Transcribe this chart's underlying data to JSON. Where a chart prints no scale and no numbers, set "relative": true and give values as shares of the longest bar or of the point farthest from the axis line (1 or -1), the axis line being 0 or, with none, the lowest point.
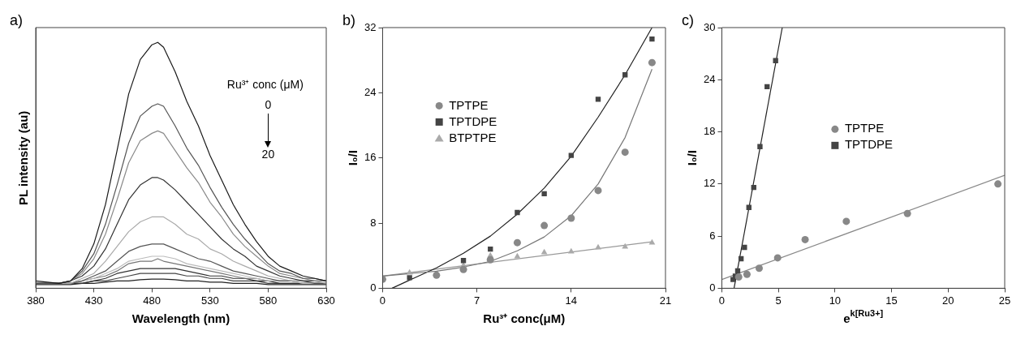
{
  "chart_data": [
    {
      "type": "line",
      "title": "a)",
      "xlabel": "Wavelength (nm)",
      "ylabel": "PL intensity (au)",
      "relative": true,
      "xlim": [
        380,
        630
      ],
      "xticks": [
        380,
        430,
        480,
        530,
        580,
        630
      ],
      "annotations": [
        "Ru³⁺ conc (μM)",
        "0",
        "20"
      ],
      "x": [
        380,
        400,
        410,
        420,
        430,
        440,
        450,
        460,
        470,
        480,
        485,
        490,
        500,
        510,
        520,
        530,
        540,
        550,
        560,
        570,
        580,
        590,
        600,
        610,
        620,
        630
      ],
      "series": [
        {
          "color": "#1a1a1a",
          "values": [
            0.03,
            0.02,
            0.03,
            0.08,
            0.18,
            0.34,
            0.56,
            0.79,
            0.93,
            0.99,
            1,
            0.98,
            0.88,
            0.76,
            0.66,
            0.54,
            0.44,
            0.34,
            0.26,
            0.19,
            0.13,
            0.09,
            0.07,
            0.05,
            0.04,
            0.03
          ]
        },
        {
          "color": "#555555",
          "values": [
            0.02,
            0.02,
            0.03,
            0.07,
            0.14,
            0.26,
            0.42,
            0.59,
            0.7,
            0.74,
            0.75,
            0.74,
            0.66,
            0.57,
            0.5,
            0.41,
            0.33,
            0.26,
            0.2,
            0.15,
            0.1,
            0.07,
            0.06,
            0.04,
            0.04,
            0.03
          ]
        },
        {
          "color": "#8a8a8a",
          "values": [
            0.02,
            0.02,
            0.03,
            0.06,
            0.12,
            0.22,
            0.36,
            0.51,
            0.6,
            0.63,
            0.64,
            0.63,
            0.56,
            0.49,
            0.43,
            0.35,
            0.29,
            0.22,
            0.17,
            0.13,
            0.09,
            0.06,
            0.05,
            0.04,
            0.03,
            0.03
          ]
        },
        {
          "color": "#333333",
          "values": [
            0.02,
            0.02,
            0.03,
            0.05,
            0.09,
            0.16,
            0.26,
            0.36,
            0.42,
            0.45,
            0.45,
            0.44,
            0.4,
            0.35,
            0.3,
            0.25,
            0.2,
            0.16,
            0.13,
            0.09,
            0.07,
            0.05,
            0.04,
            0.03,
            0.03,
            0.03
          ]
        },
        {
          "color": "#aaaaaa",
          "values": [
            0.02,
            0.02,
            0.02,
            0.04,
            0.06,
            0.11,
            0.17,
            0.23,
            0.27,
            0.29,
            0.29,
            0.29,
            0.26,
            0.22,
            0.2,
            0.16,
            0.14,
            0.11,
            0.09,
            0.07,
            0.05,
            0.04,
            0.03,
            0.03,
            0.03,
            0.02
          ]
        },
        {
          "color": "#555555",
          "values": [
            0.02,
            0.02,
            0.02,
            0.03,
            0.05,
            0.07,
            0.11,
            0.15,
            0.17,
            0.18,
            0.18,
            0.18,
            0.16,
            0.14,
            0.12,
            0.11,
            0.09,
            0.07,
            0.06,
            0.05,
            0.04,
            0.03,
            0.03,
            0.03,
            0.02,
            0.02
          ]
        },
        {
          "color": "#bbbbbb",
          "values": [
            0.02,
            0.02,
            0.02,
            0.03,
            0.04,
            0.06,
            0.08,
            0.11,
            0.12,
            0.13,
            0.13,
            0.13,
            0.12,
            0.1,
            0.09,
            0.08,
            0.07,
            0.06,
            0.05,
            0.04,
            0.03,
            0.03,
            0.03,
            0.02,
            0.02,
            0.02
          ]
        },
        {
          "color": "#777777",
          "values": [
            0.02,
            0.02,
            0.02,
            0.03,
            0.04,
            0.05,
            0.07,
            0.1,
            0.11,
            0.11,
            0.12,
            0.11,
            0.1,
            0.09,
            0.08,
            0.07,
            0.06,
            0.05,
            0.04,
            0.04,
            0.03,
            0.03,
            0.03,
            0.02,
            0.02,
            0.02
          ]
        },
        {
          "color": "#333333",
          "values": [
            0.02,
            0.02,
            0.02,
            0.02,
            0.03,
            0.04,
            0.06,
            0.07,
            0.08,
            0.08,
            0.08,
            0.08,
            0.08,
            0.07,
            0.06,
            0.05,
            0.05,
            0.04,
            0.04,
            0.03,
            0.03,
            0.02,
            0.02,
            0.02,
            0.02,
            0.02
          ]
        },
        {
          "color": "#444444",
          "values": [
            0.02,
            0.02,
            0.02,
            0.02,
            0.03,
            0.03,
            0.04,
            0.05,
            0.06,
            0.06,
            0.06,
            0.06,
            0.06,
            0.05,
            0.05,
            0.04,
            0.04,
            0.03,
            0.03,
            0.03,
            0.02,
            0.02,
            0.02,
            0.02,
            0.02,
            0.02
          ]
        },
        {
          "color": "#222222",
          "values": [
            0.015,
            0.015,
            0.015,
            0.02,
            0.02,
            0.025,
            0.03,
            0.03,
            0.035,
            0.037,
            0.037,
            0.037,
            0.035,
            0.03,
            0.03,
            0.025,
            0.025,
            0.02,
            0.02,
            0.02,
            0.015,
            0.015,
            0.015,
            0.015,
            0.015,
            0.015
          ]
        }
      ]
    },
    {
      "type": "scatter",
      "title": "b)",
      "xlabel": "Ru³⁺ conc(μM)",
      "ylabel": "I₀/I",
      "xlim": [
        0,
        21
      ],
      "xticks": [
        0,
        7,
        14,
        21
      ],
      "ylim": [
        0,
        32
      ],
      "yticks": [
        0,
        8,
        16,
        24,
        32
      ],
      "legend": "top left",
      "series": [
        {
          "name": "TPTPE",
          "color": "#888888",
          "marker": "circle",
          "x": [
            0,
            4,
            6,
            8,
            10,
            12,
            14,
            16,
            18,
            20
          ],
          "values": [
            1.1,
            1.6,
            2.3,
            3.5,
            5.6,
            7.7,
            8.6,
            12.0,
            16.7,
            27.7
          ]
        },
        {
          "name": "TPTDPE",
          "color": "#444444",
          "marker": "square",
          "x": [
            2,
            4,
            6,
            8,
            10,
            12,
            14,
            16,
            18,
            20
          ],
          "values": [
            1.3,
            null,
            3.4,
            4.8,
            9.3,
            11.6,
            16.3,
            23.2,
            26.2,
            30.6
          ]
        },
        {
          "name": "BTPTPE",
          "color": "#aaaaaa",
          "marker": "triangle",
          "x": [
            2,
            4,
            6,
            8,
            10,
            12,
            14,
            16,
            18,
            20
          ],
          "values": [
            1.9,
            null,
            2.8,
            4.0,
            3.9,
            4.4,
            4.5,
            5.0,
            5.1,
            5.6
          ]
        },
        {
          "type": "line",
          "color": "#777777",
          "x": [
            0,
            4,
            6,
            8,
            10,
            12,
            14,
            16,
            18,
            20
          ],
          "values": [
            1.5,
            2.1,
            2.6,
            3.3,
            4.6,
            6.3,
            8.9,
            12.8,
            18.5,
            26.9
          ]
        },
        {
          "type": "line",
          "color": "#222222",
          "x": [
            0.7,
            2,
            4,
            6,
            8,
            10,
            12,
            14,
            16,
            18,
            20
          ],
          "values": [
            0,
            1.0,
            2.5,
            4.3,
            6.4,
            9.1,
            12.3,
            16.2,
            21.0,
            26.2,
            32
          ]
        },
        {
          "type": "line",
          "color": "#999999",
          "x": [
            0,
            20
          ],
          "values": [
            1.5,
            5.7
          ]
        }
      ]
    },
    {
      "type": "scatter",
      "title": "c)",
      "xlabel": "e$^{k[Ru3+]}$",
      "ylabel": "I₀/I",
      "xlim": [
        0,
        25
      ],
      "xticks": [
        0,
        5,
        10,
        15,
        20,
        25
      ],
      "ylim": [
        0,
        30
      ],
      "yticks": [
        0,
        6,
        12,
        18,
        24,
        30
      ],
      "legend": "center",
      "series": [
        {
          "name": "TPTPE",
          "color": "#888888",
          "marker": "circle",
          "x": [
            1.49,
            2.22,
            3.3,
            4.93,
            7.36,
            11.0,
            16.4,
            24.4
          ],
          "values": [
            1.3,
            1.6,
            2.3,
            3.5,
            5.6,
            7.7,
            8.6,
            12.0
          ]
        },
        {
          "name": "TPTDPE",
          "color": "#444444",
          "marker": "square",
          "x": [
            0.99,
            1.19,
            1.4,
            1.7,
            2.0,
            2.39,
            2.82,
            3.37,
            4.0,
            4.75
          ],
          "values": [
            1.0,
            1.4,
            2.0,
            3.4,
            4.7,
            9.3,
            11.6,
            16.3,
            23.2,
            26.2
          ]
        },
        {
          "type": "line",
          "color": "#222222",
          "x": [
            1.08,
            5.34
          ],
          "values": [
            0,
            30
          ]
        },
        {
          "type": "line",
          "color": "#888888",
          "x": [
            0,
            25
          ],
          "values": [
            1.0,
            13.0
          ]
        }
      ]
    }
  ]
}
